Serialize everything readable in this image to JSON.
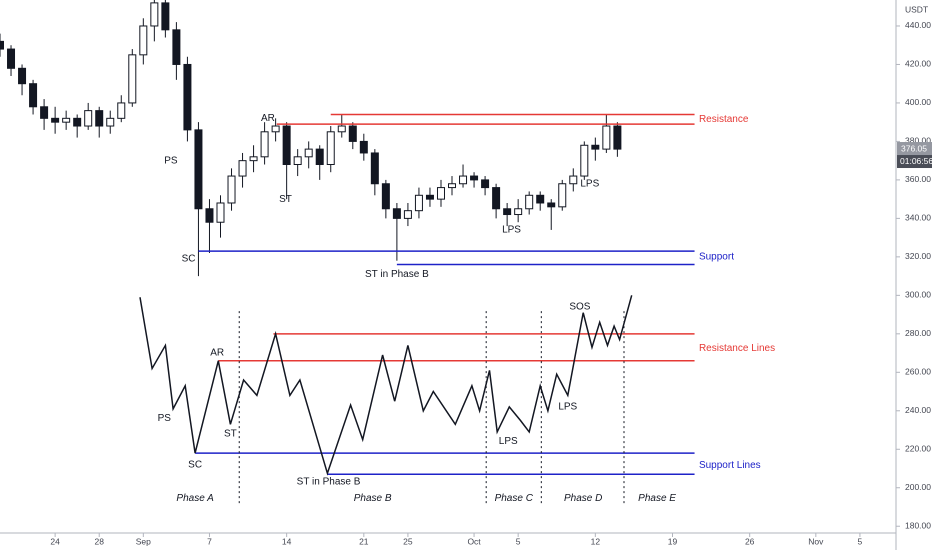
{
  "chart_data": {
    "type": "candlestick",
    "currency": "USDT",
    "xlim": [
      19,
      100
    ],
    "ylim": [
      177,
      453.5
    ],
    "xticks": [
      {
        "value": 24,
        "label": "24"
      },
      {
        "value": 28,
        "label": "28"
      },
      {
        "value": 32,
        "label": "Sep"
      },
      {
        "value": 38,
        "label": "7"
      },
      {
        "value": 45,
        "label": "14"
      },
      {
        "value": 52,
        "label": "21"
      },
      {
        "value": 56,
        "label": "25"
      },
      {
        "value": 62,
        "label": "Oct"
      },
      {
        "value": 66,
        "label": "5"
      },
      {
        "value": 73,
        "label": "12"
      },
      {
        "value": 80,
        "label": "19"
      },
      {
        "value": 87,
        "label": "26"
      },
      {
        "value": 93,
        "label": "Nov"
      },
      {
        "value": 97,
        "label": "5"
      }
    ],
    "yticks": [
      {
        "value": 180,
        "label": "180.00"
      },
      {
        "value": 200,
        "label": "200.00"
      },
      {
        "value": 220,
        "label": "220.00"
      },
      {
        "value": 240,
        "label": "240.00"
      },
      {
        "value": 260,
        "label": "260.00"
      },
      {
        "value": 280,
        "label": "280.00"
      },
      {
        "value": 300,
        "label": "300.00"
      },
      {
        "value": 320,
        "label": "320.00"
      },
      {
        "value": 340,
        "label": "340.00"
      },
      {
        "value": 360,
        "label": "360.00"
      },
      {
        "value": 380,
        "label": "380.00"
      },
      {
        "value": 400,
        "label": "400.00"
      },
      {
        "value": 420,
        "label": "420.00"
      },
      {
        "value": 440,
        "label": "440.00"
      }
    ],
    "last_price": 376.05,
    "countdown": "01:06:56",
    "x": [
      19,
      20,
      21,
      22,
      23,
      24,
      25,
      26,
      27,
      28,
      29,
      30,
      31,
      32,
      33,
      34,
      35,
      36,
      37,
      38,
      39,
      40,
      41,
      42,
      43,
      44,
      45,
      46,
      47,
      48,
      49,
      50,
      51,
      52,
      53,
      54,
      55,
      56,
      57,
      58,
      59,
      60,
      61,
      62,
      63,
      64,
      65,
      66,
      67,
      68,
      69,
      70,
      71,
      72,
      73,
      74,
      75
    ],
    "open": [
      432,
      428,
      418,
      410,
      398,
      392,
      390,
      392,
      388,
      396,
      388,
      392,
      400,
      425,
      440,
      452,
      438,
      420,
      386,
      345,
      338,
      348,
      362,
      370,
      372,
      385,
      388,
      368,
      372,
      376,
      368,
      385,
      388,
      380,
      374,
      358,
      345,
      340,
      344,
      352,
      350,
      356,
      358,
      362,
      360,
      356,
      345,
      342,
      345,
      352,
      348,
      346,
      358,
      362,
      378,
      376,
      388
    ],
    "high": [
      436,
      430,
      420,
      412,
      402,
      398,
      396,
      394,
      400,
      398,
      396,
      404,
      428,
      444,
      458,
      456,
      442,
      424,
      390,
      350,
      352,
      366,
      374,
      378,
      390,
      392,
      390,
      376,
      380,
      378,
      388,
      394,
      390,
      384,
      376,
      360,
      348,
      348,
      356,
      356,
      360,
      362,
      368,
      364,
      362,
      358,
      348,
      350,
      354,
      354,
      350,
      360,
      366,
      380,
      382,
      394,
      390
    ],
    "low": [
      424,
      414,
      404,
      394,
      386,
      384,
      386,
      382,
      386,
      382,
      384,
      390,
      398,
      420,
      432,
      434,
      412,
      380,
      310,
      322,
      330,
      344,
      356,
      364,
      368,
      380,
      350,
      362,
      366,
      360,
      364,
      382,
      376,
      370,
      352,
      340,
      318,
      336,
      340,
      346,
      346,
      352,
      356,
      356,
      352,
      340,
      336,
      338,
      342,
      344,
      334,
      344,
      354,
      360,
      370,
      374,
      372
    ],
    "close": [
      428,
      418,
      410,
      398,
      392,
      390,
      392,
      388,
      396,
      388,
      392,
      400,
      425,
      440,
      452,
      438,
      420,
      386,
      345,
      338,
      348,
      362,
      370,
      372,
      385,
      388,
      368,
      372,
      376,
      368,
      385,
      388,
      380,
      374,
      358,
      345,
      340,
      344,
      352,
      350,
      356,
      358,
      362,
      360,
      356,
      345,
      342,
      345,
      352,
      348,
      346,
      358,
      362,
      378,
      376,
      388,
      376
    ],
    "up_color": "#ffffff",
    "down_color": "#131722",
    "levels": [
      {
        "value": 394,
        "x_start": 49,
        "x_end": 82,
        "color": "#e53935"
      },
      {
        "value": 389,
        "x_start": 44.1,
        "x_end": 82,
        "color": "#e53935"
      },
      {
        "value": 323,
        "x_start": 37,
        "x_end": 82,
        "color": "#1e22c8"
      },
      {
        "value": 316,
        "x_start": 55,
        "x_end": 82,
        "color": "#1e22c8"
      },
      {
        "value": 280,
        "x_start": 43.8,
        "x_end": 82,
        "color": "#e53935"
      },
      {
        "value": 266,
        "x_start": 38.8,
        "x_end": 82,
        "color": "#e53935"
      },
      {
        "value": 218,
        "x_start": 36.7,
        "x_end": 82,
        "color": "#1e22c8"
      },
      {
        "value": 207,
        "x_start": 48.7,
        "x_end": 82,
        "color": "#1e22c8"
      }
    ],
    "schematic": {
      "color": "#131722",
      "x": [
        31.7,
        32.8,
        34,
        34.7,
        35.8,
        36.7,
        38.8,
        39.9,
        41.1,
        42.3,
        44,
        45.3,
        46.2,
        48.7,
        50.8,
        51.9,
        53.7,
        54.8,
        56,
        57.4,
        58.3,
        60.3,
        61.8,
        62.5,
        63.4,
        64.1,
        65.2,
        66.2,
        67,
        68,
        68.7,
        69.5,
        70.5,
        71.9,
        72.7,
        73.4,
        74.1,
        74.7,
        75.2,
        76.3
      ],
      "values": [
        299,
        262,
        274,
        241,
        253,
        218,
        266,
        233,
        256,
        248,
        280,
        248,
        256,
        207.5,
        243,
        225,
        269,
        245,
        274,
        240,
        250,
        233,
        253,
        240,
        261,
        229,
        242,
        235,
        229,
        253,
        240,
        259,
        248,
        291,
        273,
        286,
        274,
        284,
        277,
        300
      ]
    },
    "phase_dividers": [
      40.7,
      63.1,
      68.1,
      75.6
    ],
    "divider_range": [
      192,
      292
    ],
    "annotations": [
      {
        "text": "PS",
        "x": 34.5,
        "y": 370
      },
      {
        "text": "SC",
        "x": 36.1,
        "y": 319
      },
      {
        "text": "AR",
        "x": 43.3,
        "y": 392
      },
      {
        "text": "ST",
        "x": 44.9,
        "y": 350
      },
      {
        "text": "ST in Phase B",
        "x": 55,
        "y": 311
      },
      {
        "text": "LPS",
        "x": 65.4,
        "y": 334
      },
      {
        "text": "LPS",
        "x": 72.5,
        "y": 358
      },
      {
        "text": "Resistance",
        "x": 82.4,
        "y": 391.5,
        "color": "#e53935",
        "anchor": "start"
      },
      {
        "text": "Support",
        "x": 82.4,
        "y": 320,
        "color": "#1e22c8",
        "anchor": "start"
      },
      {
        "text": "SOS",
        "x": 71.6,
        "y": 294
      },
      {
        "text": "AR",
        "x": 38.7,
        "y": 270
      },
      {
        "text": "PS",
        "x": 33.9,
        "y": 236
      },
      {
        "text": "ST",
        "x": 39.9,
        "y": 228
      },
      {
        "text": "SC",
        "x": 36.7,
        "y": 212
      },
      {
        "text": "ST in Phase B",
        "x": 48.8,
        "y": 203
      },
      {
        "text": "LPS",
        "x": 65.1,
        "y": 224
      },
      {
        "text": "LPS",
        "x": 70.5,
        "y": 242
      },
      {
        "text": "Resistance Lines",
        "x": 82.4,
        "y": 272.5,
        "color": "#e53935",
        "anchor": "start"
      },
      {
        "text": "Support Lines",
        "x": 82.4,
        "y": 211.7,
        "color": "#1e22c8",
        "anchor": "start"
      },
      {
        "text": "Phase A",
        "x": 36.7,
        "y": 194.5,
        "italic": true
      },
      {
        "text": "Phase B",
        "x": 52.8,
        "y": 194.5,
        "italic": true
      },
      {
        "text": "Phase C",
        "x": 65.6,
        "y": 194.5,
        "italic": true
      },
      {
        "text": "Phase D",
        "x": 71.9,
        "y": 194.5,
        "italic": true
      },
      {
        "text": "Phase E",
        "x": 78.6,
        "y": 194.5,
        "italic": true
      }
    ]
  }
}
